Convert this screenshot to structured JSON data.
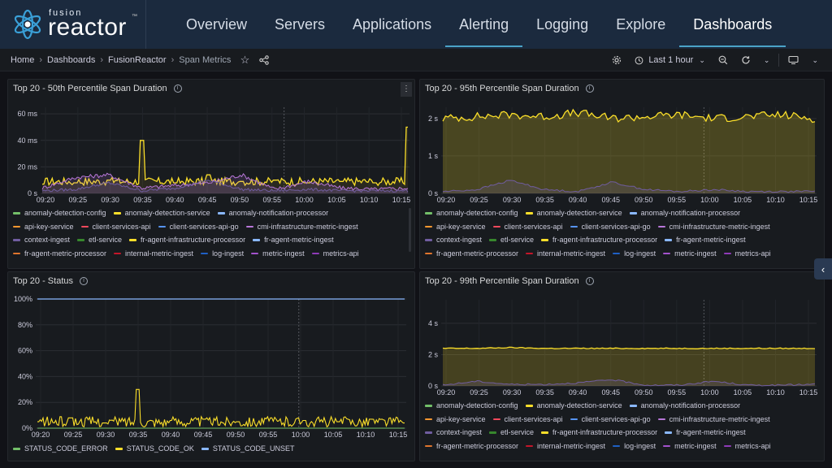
{
  "brand": {
    "small": "fusion",
    "big": "reactor",
    "tm": "™"
  },
  "nav": {
    "tabs": [
      "Overview",
      "Servers",
      "Applications",
      "Alerting",
      "Logging",
      "Explore",
      "Dashboards"
    ],
    "active": 6
  },
  "breadcrumb": [
    "Home",
    "Dashboards",
    "FusionReactor",
    "Span Metrics"
  ],
  "controls": {
    "time_range": "Last 1 hour"
  },
  "colors": {
    "accent": "#4aa3c7",
    "yellow": "#fade2a",
    "green": "#56a64b",
    "blue": "#8ab8ff"
  },
  "x_ticks": [
    "09:20",
    "09:25",
    "09:30",
    "09:35",
    "09:40",
    "09:45",
    "09:50",
    "09:55",
    "10:00",
    "10:05",
    "10:10",
    "10:15"
  ],
  "legend_span": [
    {
      "name": "anomaly-detection-config",
      "color": "#73bf69"
    },
    {
      "name": "anomaly-detection-service",
      "color": "#fade2a"
    },
    {
      "name": "anomaly-notification-processor",
      "color": "#8ab8ff"
    },
    {
      "name": "api-key-service",
      "color": "#ff9830"
    },
    {
      "name": "client-services-api",
      "color": "#f2495c"
    },
    {
      "name": "client-services-api-go",
      "color": "#5794f2"
    },
    {
      "name": "cmi-infrastructure-metric-ingest",
      "color": "#b877d9"
    },
    {
      "name": "context-ingest",
      "color": "#705da0"
    },
    {
      "name": "etl-service",
      "color": "#37872d"
    },
    {
      "name": "fr-agent-infrastructure-processor",
      "color": "#fade2a"
    },
    {
      "name": "fr-agent-metric-ingest",
      "color": "#8ab8ff"
    },
    {
      "name": "fr-agent-metric-processor",
      "color": "#e0752d"
    },
    {
      "name": "internal-metric-ingest",
      "color": "#c4162a"
    },
    {
      "name": "log-ingest",
      "color": "#1f60c4"
    },
    {
      "name": "metric-ingest",
      "color": "#a352cc"
    },
    {
      "name": "metrics-api",
      "color": "#8f3bb8"
    }
  ],
  "legend_status": [
    {
      "name": "STATUS_CODE_ERROR",
      "color": "#73bf69"
    },
    {
      "name": "STATUS_CODE_OK",
      "color": "#fade2a"
    },
    {
      "name": "STATUS_CODE_UNSET",
      "color": "#8ab8ff"
    }
  ],
  "panels": {
    "p50": {
      "title": "Top 20 - 50th Percentile Span Duration",
      "y_ticks": [
        "60 ms",
        "40 ms",
        "20 ms",
        "0 s"
      ]
    },
    "p95": {
      "title": "Top 20 - 95th Percentile Span Duration",
      "y_ticks": [
        "2 s",
        "1 s",
        "0 s"
      ]
    },
    "status": {
      "title": "Top 20 - Status",
      "y_ticks": [
        "100%",
        "80%",
        "60%",
        "40%",
        "20%",
        "0%"
      ]
    },
    "p99": {
      "title": "Top 20 - 99th Percentile Span Duration",
      "y_ticks": [
        "4 s",
        "2 s",
        "0 s"
      ]
    }
  },
  "chart_data": [
    {
      "type": "line",
      "title": "Top 20 - 50th Percentile Span Duration",
      "x": [
        "09:20",
        "09:25",
        "09:30",
        "09:35",
        "09:40",
        "09:45",
        "09:50",
        "09:55",
        "10:00",
        "10:05",
        "10:10",
        "10:15"
      ],
      "ylim": [
        0,
        65
      ],
      "series": [
        {
          "name": "anomaly-detection-service",
          "values": [
            7,
            8,
            10,
            40,
            8,
            14,
            9,
            10,
            8,
            9,
            8,
            50
          ]
        },
        {
          "name": "cmi-infrastructure-metric-ingest",
          "values": [
            4,
            12,
            14,
            4,
            6,
            8,
            14,
            3,
            9,
            4,
            3,
            4
          ]
        },
        {
          "name": "context-ingest",
          "values": [
            2,
            3,
            8,
            2,
            4,
            10,
            3,
            2,
            3,
            2,
            2,
            2
          ]
        }
      ]
    },
    {
      "type": "line",
      "title": "Top 20 - 95th Percentile Span Duration",
      "x": [
        "09:20",
        "09:25",
        "09:30",
        "09:35",
        "09:40",
        "09:45",
        "09:50",
        "09:55",
        "10:00",
        "10:05",
        "10:10",
        "10:15"
      ],
      "ylim": [
        0,
        2.3
      ],
      "series": [
        {
          "name": "anomaly-detection-service",
          "values": [
            2.0,
            2.05,
            2.1,
            2.05,
            2.15,
            2.0,
            2.05,
            2.1,
            2.0,
            2.05,
            2.1,
            2.0
          ]
        },
        {
          "name": "context-ingest",
          "values": [
            0.05,
            0.1,
            0.35,
            0.1,
            0.05,
            0.3,
            0.1,
            0.05,
            0.1,
            0.05,
            0.05,
            0.05
          ]
        }
      ]
    },
    {
      "type": "line",
      "title": "Top 20 - Status",
      "x": [
        "09:20",
        "09:25",
        "09:30",
        "09:35",
        "09:40",
        "09:45",
        "09:50",
        "09:55",
        "10:00",
        "10:05",
        "10:10",
        "10:15"
      ],
      "ylim": [
        0,
        100
      ],
      "series": [
        {
          "name": "STATUS_CODE_UNSET",
          "values": [
            100,
            100,
            100,
            100,
            100,
            100,
            100,
            100,
            100,
            100,
            100,
            100
          ]
        },
        {
          "name": "STATUS_CODE_OK",
          "values": [
            5,
            8,
            4,
            30,
            6,
            7,
            5,
            8,
            6,
            5,
            7,
            4
          ]
        },
        {
          "name": "STATUS_CODE_ERROR",
          "values": [
            0,
            0,
            0,
            0,
            0,
            0,
            0,
            0,
            0,
            0,
            0,
            0
          ]
        }
      ]
    },
    {
      "type": "line",
      "title": "Top 20 - 99th Percentile Span Duration",
      "x": [
        "09:20",
        "09:25",
        "09:30",
        "09:35",
        "09:40",
        "09:45",
        "09:50",
        "09:55",
        "10:00",
        "10:05",
        "10:10",
        "10:15"
      ],
      "ylim": [
        0,
        5.5
      ],
      "series": [
        {
          "name": "anomaly-detection-service",
          "values": [
            2.4,
            2.4,
            2.45,
            2.4,
            2.4,
            2.4,
            2.4,
            2.4,
            2.4,
            2.4,
            2.4,
            2.4
          ]
        },
        {
          "name": "context-ingest",
          "values": [
            0.05,
            0.3,
            0.1,
            0.1,
            0.2,
            0.4,
            0.05,
            0.05,
            0.3,
            0.05,
            0.05,
            0.1
          ]
        }
      ]
    }
  ]
}
